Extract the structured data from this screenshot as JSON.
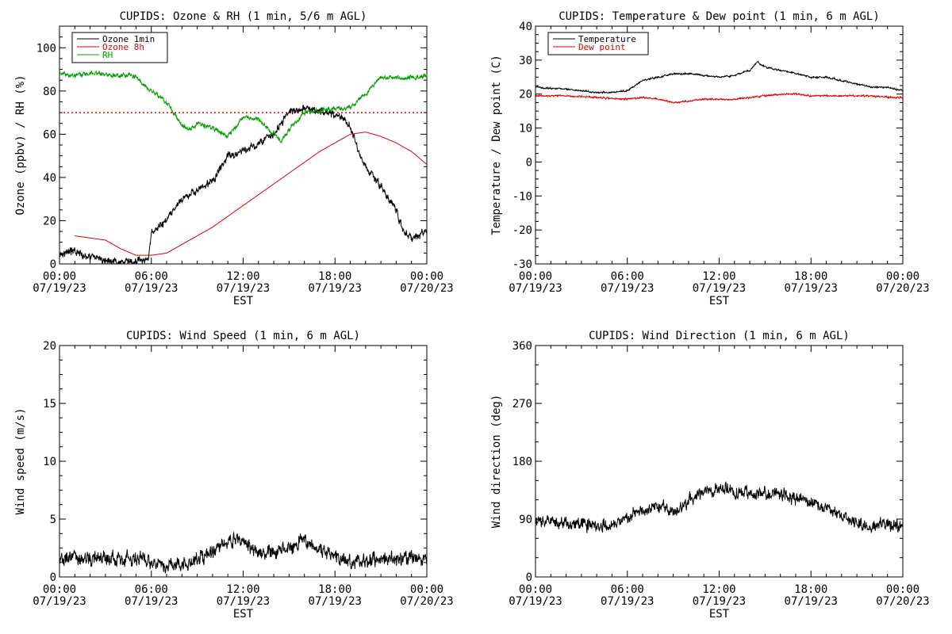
{
  "chart_data": [
    {
      "type": "line",
      "title": "CUPIDS: Ozone & RH (1 min, 5/6 m AGL)",
      "xlabel": "EST",
      "ylabel": "Ozone (ppbv) / RH (%)",
      "xlim_hours": [
        0,
        24
      ],
      "ylim": [
        0,
        110
      ],
      "y_ticks": [
        0,
        20,
        40,
        60,
        80,
        100
      ],
      "x_ticks": [
        {
          "time": "00:00",
          "date": "07/19/23"
        },
        {
          "time": "06:00",
          "date": "07/19/23"
        },
        {
          "time": "12:00",
          "date": "07/19/23"
        },
        {
          "time": "18:00",
          "date": "07/19/23"
        },
        {
          "time": "00:00",
          "date": "07/20/23"
        }
      ],
      "legend_position": "top-left",
      "reference_line": {
        "y": 70,
        "color": "#dd0000",
        "style": "dotted"
      },
      "series": [
        {
          "name": "Ozone 1min",
          "color": "#000000",
          "noise": 2.5,
          "x": [
            0,
            1,
            2,
            3,
            4,
            5,
            5.8,
            6,
            7,
            8,
            9,
            10,
            11,
            12,
            13,
            14,
            15,
            16,
            17,
            18,
            18.5,
            19,
            19.5,
            20,
            21,
            22,
            22.5,
            23,
            24
          ],
          "y": [
            5,
            6,
            3,
            2,
            1,
            1,
            2,
            14,
            20,
            30,
            34,
            38,
            50,
            52,
            56,
            60,
            70,
            72,
            71,
            69,
            68,
            63,
            53,
            45,
            36,
            25,
            15,
            12,
            15
          ]
        },
        {
          "name": "Ozone 8h",
          "color": "#dd0000",
          "noise": 0,
          "x": [
            1,
            3,
            4,
            5,
            6,
            7,
            8,
            9,
            10,
            11,
            12,
            13,
            14,
            15,
            16,
            17,
            18,
            19,
            20,
            21,
            22,
            23,
            24
          ],
          "y": [
            13,
            11,
            7,
            4,
            4,
            5,
            9,
            13,
            17,
            22,
            27,
            32,
            37,
            42,
            47,
            52,
            56,
            60,
            61,
            59,
            56,
            52,
            46
          ]
        },
        {
          "name": "RH",
          "color": "#00a000",
          "noise": 1.5,
          "x": [
            0,
            1,
            2,
            3,
            4,
            5,
            5.5,
            6,
            7,
            8,
            8.5,
            9,
            10,
            11,
            12,
            13,
            13.5,
            14,
            14.5,
            15,
            16,
            17,
            18,
            19,
            20,
            21,
            22,
            23,
            24
          ],
          "y": [
            88,
            87,
            88,
            88,
            87,
            87,
            83,
            80,
            75,
            64,
            62,
            65,
            63,
            59,
            68,
            67,
            63,
            60,
            57,
            62,
            70,
            71,
            72,
            72,
            79,
            86,
            86,
            86,
            87
          ]
        }
      ]
    },
    {
      "type": "line",
      "title": "CUPIDS: Temperature & Dew point (1 min, 6 m AGL)",
      "xlabel": "EST",
      "ylabel": "Temperature / Dew point (C)",
      "xlim_hours": [
        0,
        24
      ],
      "ylim": [
        -30,
        40
      ],
      "y_ticks": [
        -30,
        -20,
        -10,
        0,
        10,
        20,
        30,
        40
      ],
      "x_ticks": [
        {
          "time": "00:00",
          "date": "07/19/23"
        },
        {
          "time": "06:00",
          "date": "07/19/23"
        },
        {
          "time": "12:00",
          "date": "07/19/23"
        },
        {
          "time": "18:00",
          "date": "07/19/23"
        },
        {
          "time": "00:00",
          "date": "07/20/23"
        }
      ],
      "legend_position": "top-left",
      "series": [
        {
          "name": "Temperature",
          "color": "#000000",
          "noise": 0.35,
          "x": [
            0,
            2,
            4,
            5,
            6,
            7,
            8,
            9,
            10,
            11,
            12,
            13,
            14,
            14.5,
            15,
            16,
            17,
            18,
            19,
            20,
            21,
            22,
            23,
            24
          ],
          "y": [
            22,
            21.5,
            20.5,
            20.5,
            21,
            24,
            25,
            26,
            26,
            25.5,
            25,
            25.5,
            27,
            29.5,
            28,
            27,
            26,
            25,
            25,
            24,
            23,
            22,
            22,
            21
          ]
        },
        {
          "name": "Dew point",
          "color": "#dd0000",
          "noise": 0.35,
          "x": [
            0,
            2,
            4,
            6,
            7,
            8,
            9,
            10,
            11,
            12,
            13,
            14,
            15,
            16,
            17,
            18,
            19,
            20,
            21,
            22,
            23,
            24
          ],
          "y": [
            19.5,
            19.5,
            19,
            18.5,
            19,
            18.5,
            17.5,
            18,
            18.5,
            18.5,
            18.5,
            19,
            19.5,
            20,
            20,
            19.5,
            19.5,
            19.5,
            19.5,
            19.5,
            19,
            19
          ]
        }
      ]
    },
    {
      "type": "line",
      "title": "CUPIDS: Wind Speed (1 min, 6 m AGL)",
      "xlabel": "EST",
      "ylabel": "Wind speed (m/s)",
      "xlim_hours": [
        0,
        24
      ],
      "ylim": [
        0,
        20
      ],
      "y_ticks": [
        0,
        5,
        10,
        15,
        20
      ],
      "x_ticks": [
        {
          "time": "00:00",
          "date": "07/19/23"
        },
        {
          "time": "06:00",
          "date": "07/19/23"
        },
        {
          "time": "12:00",
          "date": "07/19/23"
        },
        {
          "time": "18:00",
          "date": "07/19/23"
        },
        {
          "time": "00:00",
          "date": "07/20/23"
        }
      ],
      "series": [
        {
          "name": "",
          "color": "#000000",
          "noise": 0.9,
          "x": [
            0,
            1,
            2,
            3,
            4,
            5,
            6,
            7,
            8,
            9,
            10,
            11,
            11.5,
            12,
            13,
            14,
            15,
            16,
            17,
            18,
            19,
            20,
            21,
            22,
            23,
            24
          ],
          "y": [
            1.5,
            1.5,
            1.6,
            1.6,
            1.5,
            1.6,
            1.4,
            1.1,
            1.0,
            1.5,
            2.0,
            3.0,
            3.2,
            3.0,
            2.0,
            2.0,
            2.5,
            3.2,
            2.3,
            1.8,
            1.2,
            1.5,
            1.6,
            1.5,
            1.6,
            1.7
          ]
        }
      ]
    },
    {
      "type": "line",
      "title": "CUPIDS: Wind Direction (1 min, 6 m AGL)",
      "xlabel": "EST",
      "ylabel": "Wind direction (deg)",
      "xlim_hours": [
        0,
        24
      ],
      "ylim": [
        0,
        360
      ],
      "y_ticks": [
        0,
        90,
        180,
        270,
        360
      ],
      "x_ticks": [
        {
          "time": "00:00",
          "date": "07/19/23"
        },
        {
          "time": "06:00",
          "date": "07/19/23"
        },
        {
          "time": "12:00",
          "date": "07/19/23"
        },
        {
          "time": "18:00",
          "date": "07/19/23"
        },
        {
          "time": "00:00",
          "date": "07/20/23"
        }
      ],
      "series": [
        {
          "name": "",
          "color": "#000000",
          "noise": 14,
          "x": [
            0,
            1,
            2,
            3,
            4,
            5,
            6,
            7,
            8,
            9,
            10,
            11,
            12,
            13,
            14,
            15,
            16,
            17,
            18,
            19,
            20,
            21,
            22,
            23,
            24
          ],
          "y": [
            85,
            88,
            82,
            85,
            80,
            80,
            92,
            105,
            110,
            100,
            118,
            132,
            138,
            133,
            128,
            130,
            128,
            122,
            115,
            108,
            90,
            82,
            80,
            83,
            78
          ]
        }
      ]
    }
  ]
}
